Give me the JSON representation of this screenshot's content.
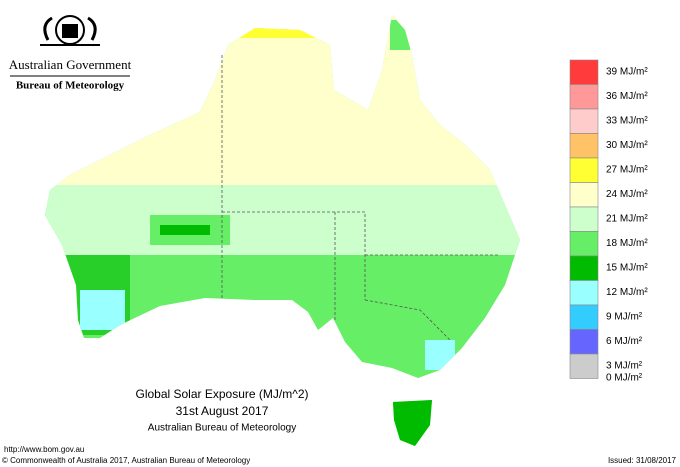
{
  "header": {
    "government": "Australian Government",
    "agency": "Bureau of Meteorology"
  },
  "legend": [
    {
      "label": "39 MJ/m²",
      "color": "#ff3b3b"
    },
    {
      "label": "36 MJ/m²",
      "color": "#ff9999"
    },
    {
      "label": "33 MJ/m²",
      "color": "#ffcccc"
    },
    {
      "label": "30 MJ/m²",
      "color": "#ffc266"
    },
    {
      "label": "27 MJ/m²",
      "color": "#ffff33"
    },
    {
      "label": "24 MJ/m²",
      "color": "#ffffcc"
    },
    {
      "label": "21 MJ/m²",
      "color": "#ccffcc"
    },
    {
      "label": "18 MJ/m²",
      "color": "#66ee66"
    },
    {
      "label": "15 MJ/m²",
      "color": "#00bb00"
    },
    {
      "label": "12 MJ/m²",
      "color": "#99ffff"
    },
    {
      "label": "9 MJ/m²",
      "color": "#33ccff"
    },
    {
      "label": "6 MJ/m²",
      "color": "#6666ff"
    },
    {
      "label": "3 MJ/m²",
      "color": "#cccccc"
    }
  ],
  "legend_bottom_label": "0 MJ/m²",
  "map_title": {
    "line1": "Global Solar Exposure (MJ/m^2)",
    "line2": "31st August 2017",
    "line3": "Australian Bureau of Meteorology"
  },
  "footer": {
    "url": "http://www.bom.gov.au",
    "copyright": "© Commonwealth of Australia 2017, Australian Bureau of Meteorology",
    "issued": "Issued: 31/08/2017"
  }
}
